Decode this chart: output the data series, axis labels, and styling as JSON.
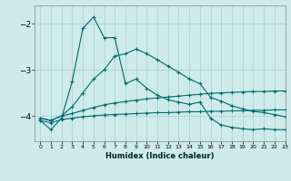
{
  "xlabel": "Humidex (Indice chaleur)",
  "background_color": "#ceeaea",
  "line_color": "#006b6b",
  "grid_color": "#aad0d0",
  "xlim": [
    -0.5,
    23
  ],
  "ylim": [
    -4.55,
    -1.6
  ],
  "yticks": [
    -4,
    -3,
    -2
  ],
  "xticks": [
    0,
    1,
    2,
    3,
    4,
    5,
    6,
    7,
    8,
    9,
    10,
    11,
    12,
    13,
    14,
    15,
    16,
    17,
    18,
    19,
    20,
    21,
    22,
    23
  ],
  "line1_x": [
    0,
    1,
    2,
    3,
    4,
    5,
    6,
    7,
    8,
    9,
    10,
    11,
    12,
    13,
    14,
    15,
    16,
    17,
    18,
    19,
    20,
    21,
    22,
    23
  ],
  "line1_y": [
    -4.1,
    -4.3,
    -4.05,
    -3.25,
    -2.1,
    -1.85,
    -2.3,
    -2.3,
    -3.3,
    -3.2,
    -3.4,
    -3.55,
    -3.65,
    -3.7,
    -3.75,
    -3.7,
    -4.05,
    -4.2,
    -4.25,
    -4.28,
    -4.3,
    -4.28,
    -4.3,
    -4.3
  ],
  "line2_x": [
    0,
    1,
    2,
    3,
    4,
    5,
    6,
    7,
    8,
    9,
    10,
    11,
    12,
    13,
    14,
    15,
    16,
    17,
    18,
    19,
    20,
    21,
    22,
    23
  ],
  "line2_y": [
    -4.05,
    -4.1,
    -4.0,
    -3.8,
    -3.5,
    -3.2,
    -3.0,
    -2.7,
    -2.65,
    -2.55,
    -2.65,
    -2.78,
    -2.92,
    -3.05,
    -3.2,
    -3.3,
    -3.6,
    -3.68,
    -3.78,
    -3.85,
    -3.9,
    -3.93,
    -3.97,
    -4.02
  ],
  "line3_x": [
    0,
    1,
    2,
    3,
    4,
    5,
    6,
    7,
    8,
    9,
    10,
    11,
    12,
    13,
    14,
    15,
    16,
    17,
    18,
    19,
    20,
    21,
    22,
    23
  ],
  "line3_y": [
    -4.05,
    -4.1,
    -4.0,
    -3.95,
    -3.88,
    -3.82,
    -3.76,
    -3.72,
    -3.69,
    -3.66,
    -3.63,
    -3.61,
    -3.59,
    -3.57,
    -3.55,
    -3.53,
    -3.51,
    -3.5,
    -3.49,
    -3.48,
    -3.47,
    -3.47,
    -3.46,
    -3.46
  ],
  "line4_x": [
    0,
    1,
    2,
    3,
    4,
    5,
    6,
    7,
    8,
    9,
    10,
    11,
    12,
    13,
    14,
    15,
    16,
    17,
    18,
    19,
    20,
    21,
    22,
    23
  ],
  "line4_y": [
    -4.1,
    -4.15,
    -4.08,
    -4.05,
    -4.02,
    -4.0,
    -3.98,
    -3.97,
    -3.96,
    -3.95,
    -3.94,
    -3.93,
    -3.93,
    -3.92,
    -3.91,
    -3.91,
    -3.9,
    -3.9,
    -3.89,
    -3.89,
    -3.88,
    -3.88,
    -3.87,
    -3.87
  ]
}
